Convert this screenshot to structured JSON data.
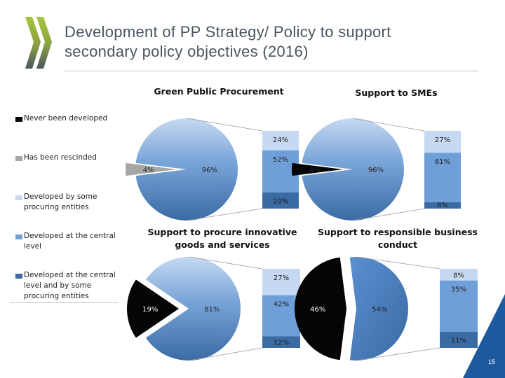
{
  "slide": {
    "title_line1": "Development of PP Strategy/ Policy to support",
    "title_line2": "secondary policy objectives (2016)",
    "page_number": "15",
    "logo_icon": "oecd-logo-icon"
  },
  "legend": {
    "items": [
      {
        "label_lines": [
          "Never been developed"
        ],
        "color": "#050505"
      },
      {
        "label_lines": [
          "Has been rescinded"
        ],
        "color": "#a6a6a6"
      },
      {
        "label_lines": [
          "Developed by some",
          "procuring entities"
        ],
        "color": "#c6d9f1"
      },
      {
        "label_lines": [
          "Developed at the central",
          "level"
        ],
        "color": "#6f9fd8"
      },
      {
        "label_lines": [
          "Developed at the central",
          "level and by some",
          "procuring entities"
        ],
        "color": "#3a6ba5"
      }
    ]
  },
  "chart_data": [
    {
      "type": "pie",
      "title_lines": [
        "Green Public Procurement"
      ],
      "pie": {
        "labels": [
          "Has been rescinded",
          "Developed"
        ],
        "values": [
          4,
          96
        ],
        "display": [
          "4%",
          "96%"
        ]
      },
      "breakdown": {
        "labels": [
          "Developed by some procuring entities",
          "Developed at the central level",
          "Developed at the central level and by some procuring entities"
        ],
        "values": [
          24,
          52,
          20
        ],
        "display": [
          "24%",
          "52%",
          "20%"
        ]
      }
    },
    {
      "type": "pie",
      "title_lines": [
        "Support to SMEs"
      ],
      "pie": {
        "labels": [
          "Never been developed",
          "Developed"
        ],
        "values": [
          4,
          96
        ],
        "display": [
          "4%",
          "96%"
        ]
      },
      "breakdown": {
        "labels": [
          "Developed by some procuring entities",
          "Developed at the central level",
          "Developed at the central level and by some procuring entities"
        ],
        "values": [
          27,
          61,
          8
        ],
        "display": [
          "27%",
          "61%",
          "8%"
        ]
      }
    },
    {
      "type": "pie",
      "title_lines": [
        "Support to procure innovative",
        "goods and services"
      ],
      "pie": {
        "labels": [
          "Never been developed",
          "Developed"
        ],
        "values": [
          19,
          81
        ],
        "display": [
          "19%",
          "81%"
        ]
      },
      "breakdown": {
        "labels": [
          "Developed by some procuring entities",
          "Developed at the central level",
          "Developed at the central level and by some procuring entities"
        ],
        "values": [
          27,
          42,
          12
        ],
        "display": [
          "27%",
          "42%",
          "12%"
        ]
      }
    },
    {
      "type": "pie",
      "title_lines": [
        "Support to responsible business",
        "conduct"
      ],
      "pie": {
        "labels": [
          "Never been developed",
          "Developed"
        ],
        "values": [
          46,
          54
        ],
        "display": [
          "46%",
          "54%"
        ]
      },
      "breakdown": {
        "labels": [
          "Developed by some procuring entities",
          "Developed at the central level",
          "Developed at the central level and by some procuring entities"
        ],
        "values": [
          8,
          35,
          11
        ],
        "display": [
          "8%",
          "35%",
          "11%"
        ]
      }
    }
  ]
}
